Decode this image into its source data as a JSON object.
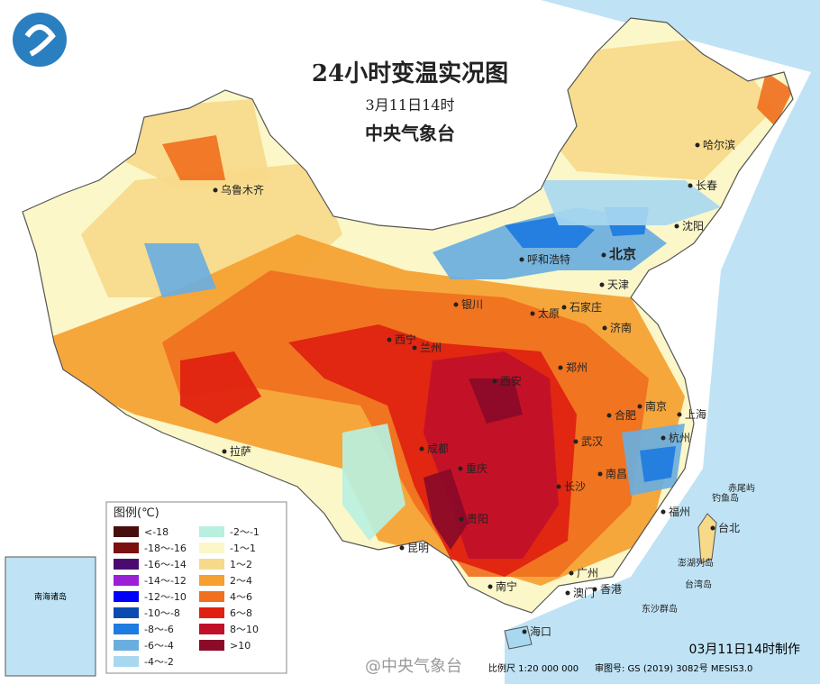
{
  "title": "24小时变温实况图",
  "date": "3月11日14时",
  "agency": "中央气象台",
  "legend": {
    "title": "图例(℃)",
    "items": [
      {
        "label": "<-18",
        "color": "#4a0d0d"
      },
      {
        "label": "-18～-16",
        "color": "#7a1010"
      },
      {
        "label": "-16～-14",
        "color": "#4b0a6e"
      },
      {
        "label": "-14～-12",
        "color": "#9b1fd6"
      },
      {
        "label": "-12～-10",
        "color": "#0000ff"
      },
      {
        "label": "-10～-8",
        "color": "#0a4bb0"
      },
      {
        "label": "-8～-6",
        "color": "#1e7be0"
      },
      {
        "label": "-6～-4",
        "color": "#6aaee0"
      },
      {
        "label": "-4～-2",
        "color": "#a8d8f0"
      },
      {
        "label": "-2～-1",
        "color": "#b8f0e0"
      },
      {
        "label": "-1～1",
        "color": "#fbf7c8"
      },
      {
        "label": "1～2",
        "color": "#f7d98a"
      },
      {
        "label": "2～4",
        "color": "#f5a030"
      },
      {
        "label": "4～6",
        "color": "#f07020"
      },
      {
        "label": "6～8",
        "color": "#e02010"
      },
      {
        "label": "8～10",
        "color": "#c0102a"
      },
      {
        "label": ">10",
        "color": "#8a0a28"
      }
    ]
  },
  "cities": [
    "乌鲁木齐",
    "哈尔滨",
    "长春",
    "沈阳",
    "北京",
    "呼和浩特",
    "天津",
    "银川",
    "太原",
    "石家庄",
    "济南",
    "西宁",
    "兰州",
    "西安",
    "郑州",
    "南京",
    "上海",
    "合肥",
    "杭州",
    "武汉",
    "成都",
    "重庆",
    "长沙",
    "南昌",
    "福州",
    "台北",
    "拉萨",
    "贵阳",
    "昆明",
    "南宁",
    "广州",
    "澳门",
    "香港",
    "海口"
  ],
  "islands": [
    "赤尾屿",
    "钓鱼岛",
    "澎湖列岛",
    "台湾岛",
    "东沙群岛"
  ],
  "footer": {
    "made": "03月11日14时制作",
    "weibo": "@中央气象台",
    "scale": "比例尺 1:20 000 000",
    "approval": "审图号: GS (2019) 3082号 MESIS3.0"
  },
  "inset": "南海诸岛"
}
